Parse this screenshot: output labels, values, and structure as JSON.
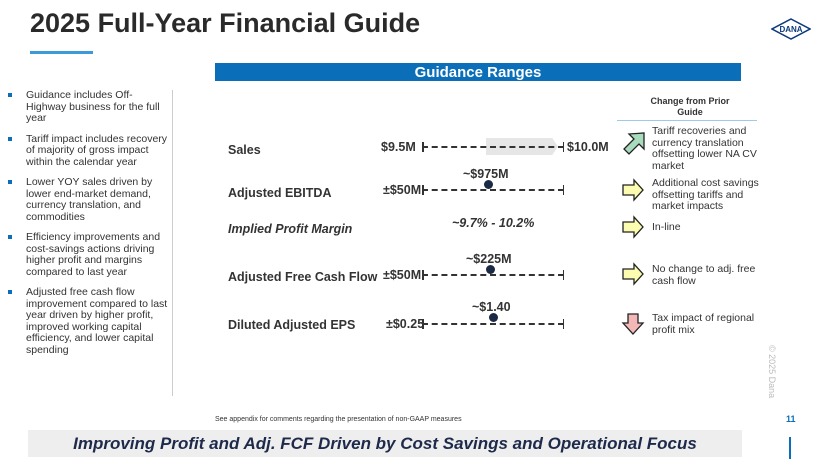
{
  "title": "2025 Full-Year Financial Guide",
  "logo": "DANA",
  "banner": "Guidance Ranges",
  "bullets": [
    "Guidance includes Off-Highway business for the full year",
    "Tariff impact includes recovery of majority of gross impact within the calendar year",
    "Lower YOY sales driven by lower end-market demand, currency translation, and commodities",
    "Efficiency improvements and cost-savings actions driving higher profit and margins compared to last year",
    "Adjusted free cash flow improvement compared to last year driven by higher profit, improved working capital efficiency, and lower capital spending"
  ],
  "change_header": "Change from Prior Guide",
  "metrics": [
    {
      "label": "Sales",
      "low": "$9.5M",
      "high": "$10.0M",
      "change": "Tariff recoveries and currency translation offsetting lower NA CV market",
      "arrow": "up-right-green"
    },
    {
      "label": "Adjusted EBITDA",
      "center": "~$975M",
      "range": "±$50M",
      "change": "Additional cost savings offsetting tariffs and market impacts",
      "arrow": "right-yellow"
    },
    {
      "label": "Implied Profit Margin",
      "center": "~9.7% - 10.2%",
      "change": "In-line",
      "arrow": "right-yellow"
    },
    {
      "label": "Adjusted Free Cash Flow",
      "center": "~$225M",
      "range": "±$50M",
      "change": "No change to adj. free cash flow",
      "arrow": "right-yellow"
    },
    {
      "label": "Diluted Adjusted EPS",
      "center": "~$1.40",
      "range": "±$0.25",
      "change": "Tax impact of regional profit mix",
      "arrow": "down-red"
    }
  ],
  "copyright": "© 2025 Dana",
  "footnote": "See appendix for comments regarding the presentation of non-GAAP measures",
  "page": "11",
  "bottom_banner": "Improving Profit and Adj. FCF Driven by Cost Savings and Operational Focus",
  "colors": {
    "accent": "#0a6fb8",
    "green": "#a8dcbc",
    "yellow": "#fcfcb0",
    "red": "#f2b8b8"
  }
}
